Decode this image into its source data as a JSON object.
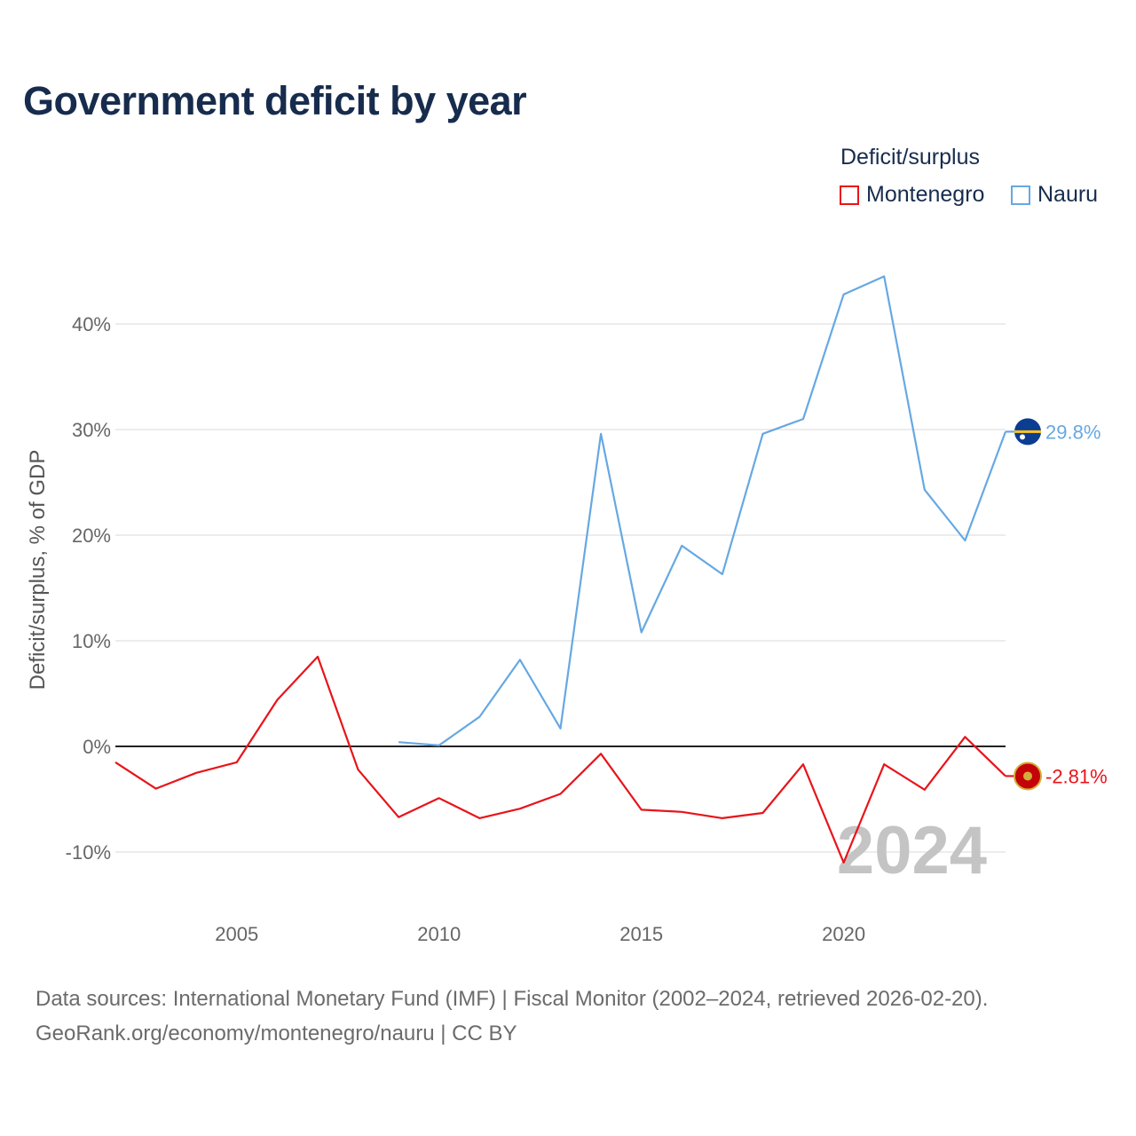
{
  "chart_data": {
    "type": "line",
    "title": "Government deficit by year",
    "legend_title": "Deficit/surplus",
    "ylabel": "Deficit/surplus, % of GDP",
    "xlabel": "",
    "x_ticks": [
      "2005",
      "2010",
      "2015",
      "2020"
    ],
    "y_ticks": [
      "-10%",
      "0%",
      "10%",
      "20%",
      "30%",
      "40%"
    ],
    "xlim": [
      2002,
      2024
    ],
    "ylim": [
      -15,
      48
    ],
    "year_watermark": "2024",
    "series": [
      {
        "name": "Montenegro",
        "color": "#e8141a",
        "end_label": "-2.81%",
        "x": [
          2002,
          2003,
          2004,
          2005,
          2006,
          2007,
          2008,
          2009,
          2010,
          2011,
          2012,
          2013,
          2014,
          2015,
          2016,
          2017,
          2018,
          2019,
          2020,
          2021,
          2022,
          2023,
          2024
        ],
        "values": [
          -1.5,
          -4.0,
          -2.5,
          -1.5,
          4.4,
          8.5,
          -2.2,
          -6.7,
          -4.9,
          -6.8,
          -5.9,
          -4.5,
          -0.7,
          -6.0,
          -6.2,
          -6.8,
          -6.3,
          -1.7,
          -11.0,
          -1.7,
          -4.1,
          0.9,
          -2.81
        ]
      },
      {
        "name": "Nauru",
        "color": "#66a8e3",
        "end_label": "29.8%",
        "x": [
          2009,
          2010,
          2011,
          2012,
          2013,
          2014,
          2015,
          2016,
          2017,
          2018,
          2019,
          2020,
          2021,
          2022,
          2023,
          2024
        ],
        "values": [
          0.4,
          0.1,
          2.8,
          8.2,
          1.7,
          29.6,
          10.8,
          19.0,
          16.3,
          29.6,
          31.0,
          42.8,
          44.5,
          24.3,
          19.5,
          29.8
        ]
      }
    ]
  },
  "footer": {
    "line1": "Data sources: International Monetary Fund (IMF) | Fiscal Monitor (2002–2024, retrieved 2026-02-20).",
    "line2": "GeoRank.org/economy/montenegro/nauru | CC BY"
  }
}
